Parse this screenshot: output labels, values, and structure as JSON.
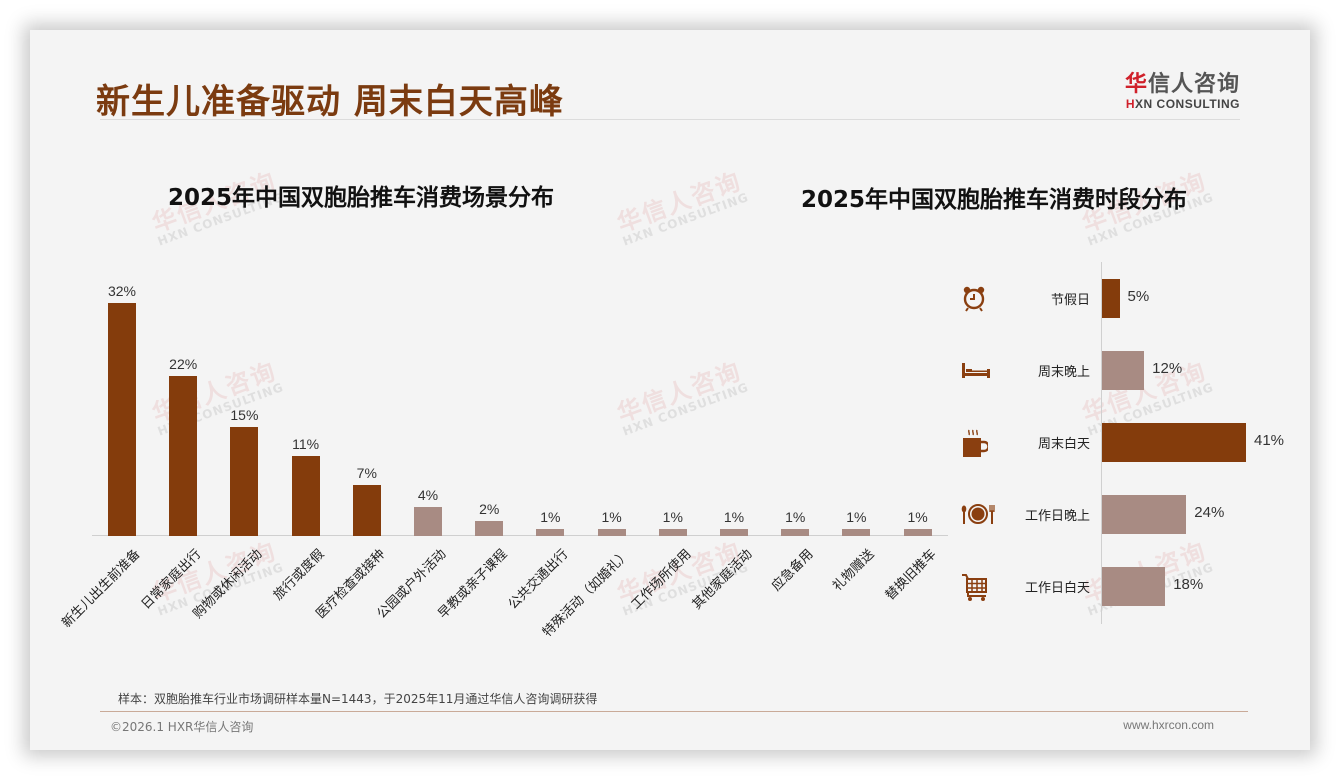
{
  "header": {
    "title": "新生儿准备驱动 周末白天高峰",
    "logo_cn_mark": "华",
    "logo_cn_rest": "信人咨询",
    "logo_en_mark": "H",
    "logo_en_rest": "XN CONSULTING"
  },
  "watermark": {
    "cn": "华信人咨询",
    "en": "HXN CONSULTING"
  },
  "colors": {
    "title": "#7b3b10",
    "bar_primary": "#843c0c",
    "bar_secondary": "#a88b83",
    "icon": "#8a3f10",
    "logo_red": "#d0202a"
  },
  "chart_data": [
    {
      "type": "bar",
      "title": "2025年中国双胞胎推车消费场景分布",
      "xlabel": "",
      "ylabel": "",
      "ylim": [
        0,
        35
      ],
      "grid": false,
      "legend": "none",
      "categories": [
        "新生儿出生前准备",
        "日常家庭出行",
        "购物或休闲活动",
        "旅行或度假",
        "医疗检查或接种",
        "公园或户外活动",
        "早教或亲子课程",
        "公共交通出行",
        "特殊活动（如婚礼）",
        "工作场所使用",
        "其他家庭活动",
        "应急备用",
        "礼物赠送",
        "替换旧推车"
      ],
      "values": [
        32,
        22,
        15,
        11,
        7,
        4,
        2,
        1,
        1,
        1,
        1,
        1,
        1,
        1
      ],
      "labels": [
        "32%",
        "22%",
        "15%",
        "11%",
        "7%",
        "4%",
        "2%",
        "1%",
        "1%",
        "1%",
        "1%",
        "1%",
        "1%",
        "1%"
      ],
      "highlight_top_n": 5
    },
    {
      "type": "bar",
      "orientation": "horizontal",
      "title": "2025年中国双胞胎推车消费时段分布",
      "xlabel": "",
      "ylabel": "",
      "xlim": [
        0,
        45
      ],
      "grid": false,
      "legend": "none",
      "categories": [
        "节假日",
        "周末晚上",
        "周末白天",
        "工作日晚上",
        "工作日白天"
      ],
      "values": [
        5,
        12,
        41,
        24,
        18
      ],
      "labels": [
        "5%",
        "12%",
        "41%",
        "24%",
        "18%"
      ],
      "icons": [
        "alarm-clock-icon",
        "bed-icon",
        "coffee-mug-icon",
        "plate-cutlery-icon",
        "shopping-cart-icon"
      ],
      "highlighted": [
        "节假日",
        "周末白天"
      ]
    }
  ],
  "footer": {
    "sample_note": "样本：双胞胎推车行业市场调研样本量N=1443，于2025年11月通过华信人咨询调研获得",
    "copyright": "©2026.1 HXR华信人咨询",
    "website": "www.hxrcon.com"
  }
}
